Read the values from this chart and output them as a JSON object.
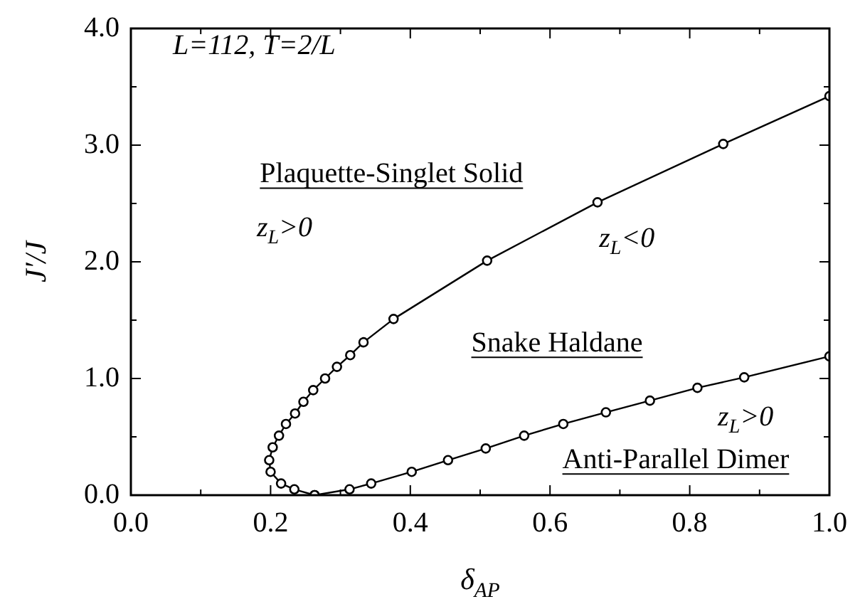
{
  "chart_data": {
    "type": "line",
    "xlabel": "δ$_{AP}$",
    "ylabel": "J′/J",
    "series": [
      {
        "color": "#000000",
        "x": [
          0.263,
          0.234,
          0.215,
          0.2,
          0.198,
          0.203,
          0.212,
          0.222,
          0.235,
          0.247,
          0.261,
          0.278,
          0.295,
          0.314,
          0.333,
          0.376,
          0.51,
          0.668,
          0.848,
          1.0
        ],
        "values": [
          0.0,
          0.05,
          0.1,
          0.2,
          0.3,
          0.41,
          0.51,
          0.61,
          0.7,
          0.8,
          0.9,
          1.0,
          1.1,
          1.2,
          1.31,
          1.51,
          2.01,
          2.51,
          3.01,
          3.42
        ]
      },
      {
        "color": "#000000",
        "x": [
          0.263,
          0.313,
          0.344,
          0.402,
          0.454,
          0.508,
          0.563,
          0.619,
          0.68,
          0.743,
          0.811,
          0.878,
          1.0
        ],
        "values": [
          0.0,
          0.05,
          0.1,
          0.2,
          0.3,
          0.4,
          0.51,
          0.61,
          0.71,
          0.81,
          0.92,
          1.01,
          1.19
        ]
      }
    ],
    "xlim": [
      0,
      1
    ],
    "xticks": [
      {
        "value": 0,
        "label": "0.0"
      },
      {
        "value": 0.1,
        "label": null
      },
      {
        "value": 0.2,
        "label": "0.2"
      },
      {
        "value": 0.3,
        "label": null
      },
      {
        "value": 0.4,
        "label": "0.4"
      },
      {
        "value": 0.5,
        "label": null
      },
      {
        "value": 0.6,
        "label": "0.6"
      },
      {
        "value": 0.7,
        "label": null
      },
      {
        "value": 0.8,
        "label": "0.8"
      },
      {
        "value": 0.9,
        "label": null
      },
      {
        "value": 1,
        "label": "1.0"
      }
    ],
    "ylim": [
      0,
      4
    ],
    "yticks": [
      {
        "value": 0,
        "label": "0.0"
      },
      {
        "value": 0.5,
        "label": null
      },
      {
        "value": 1,
        "label": "1.0"
      },
      {
        "value": 1.5,
        "label": null
      },
      {
        "value": 2,
        "label": "2.0"
      },
      {
        "value": 2.5,
        "label": null
      },
      {
        "value": 3,
        "label": "3.0"
      },
      {
        "value": 3.5,
        "label": null
      },
      {
        "value": 4,
        "label": "4.0"
      }
    ],
    "annotations": [
      "L=112, T=2/L",
      "Plaquette-Singlet Solid",
      "z$_{L}$>0",
      "z$_{L}$<0",
      "Snake Haldane",
      "z$_{L}$>0",
      "Anti-Parallel Dimer"
    ],
    "marker": "circle",
    "grid": false,
    "legend": false
  }
}
